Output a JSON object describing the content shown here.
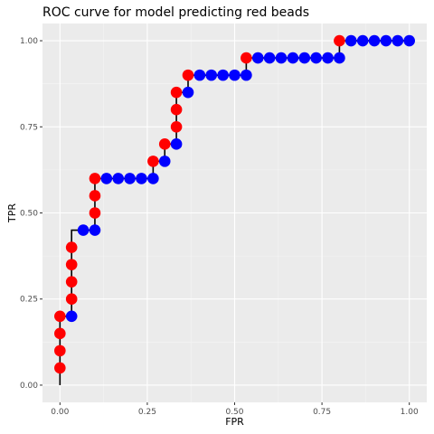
{
  "chart_data": {
    "type": "line",
    "title": "ROC curve for model predicting red beads",
    "xlabel": "FPR",
    "ylabel": "TPR",
    "xlim": [
      -0.05,
      1.05
    ],
    "ylim": [
      -0.05,
      1.05
    ],
    "x_ticks": [
      0,
      0.25,
      0.5,
      0.75,
      1.0
    ],
    "x_tick_labels": [
      "0.00",
      "0.25",
      "0.50",
      "0.75",
      "1.00"
    ],
    "y_ticks": [
      0,
      0.25,
      0.5,
      0.75,
      1.0
    ],
    "y_tick_labels": [
      "0.00",
      "0.25",
      "0.50",
      "0.75",
      "1.00"
    ],
    "grid": true,
    "series": [
      {
        "line_color": "#000000",
        "x": [
          0.0,
          0.0,
          0.0,
          0.0,
          0.0,
          0.0333,
          0.0333,
          0.0333,
          0.0333,
          0.0333,
          0.0333,
          0.0667,
          0.1,
          0.1,
          0.1,
          0.1,
          0.1,
          0.1333,
          0.1667,
          0.2,
          0.2333,
          0.2667,
          0.2667,
          0.3,
          0.3,
          0.3333,
          0.3333,
          0.3333,
          0.3333,
          0.3667,
          0.3667,
          0.4,
          0.4333,
          0.4667,
          0.5,
          0.5333,
          0.5333,
          0.5667,
          0.6,
          0.6333,
          0.6667,
          0.7,
          0.7333,
          0.7667,
          0.8,
          0.8,
          0.8333,
          0.8667,
          0.9,
          0.9333,
          0.9667,
          1.0
        ],
        "y": [
          0.0,
          0.05,
          0.1,
          0.15,
          0.2,
          0.2,
          0.25,
          0.3,
          0.35,
          0.4,
          0.45,
          0.45,
          0.45,
          0.5,
          0.55,
          0.6,
          0.6,
          0.6,
          0.6,
          0.6,
          0.6,
          0.6,
          0.65,
          0.65,
          0.7,
          0.7,
          0.75,
          0.8,
          0.85,
          0.85,
          0.9,
          0.9,
          0.9,
          0.9,
          0.9,
          0.9,
          0.95,
          0.95,
          0.95,
          0.95,
          0.95,
          0.95,
          0.95,
          0.95,
          0.95,
          1.0,
          1.0,
          1.0,
          1.0,
          1.0,
          1.0,
          1.0
        ]
      }
    ],
    "points": {
      "x": [
        0.0,
        0.0,
        0.0,
        0.0,
        0.0333,
        0.0333,
        0.0333,
        0.0333,
        0.0333,
        0.0667,
        0.1,
        0.1,
        0.1,
        0.1,
        0.1333,
        0.1667,
        0.2,
        0.2333,
        0.2667,
        0.2667,
        0.3,
        0.3,
        0.3333,
        0.3333,
        0.3333,
        0.3333,
        0.3667,
        0.3667,
        0.4,
        0.4333,
        0.4667,
        0.5,
        0.5333,
        0.5333,
        0.5667,
        0.6,
        0.6333,
        0.6667,
        0.7,
        0.7333,
        0.7667,
        0.8,
        0.8,
        0.8333,
        0.8667,
        0.9,
        0.9333,
        0.9667,
        1.0
      ],
      "y": [
        0.05,
        0.1,
        0.15,
        0.2,
        0.2,
        0.25,
        0.3,
        0.35,
        0.4,
        0.45,
        0.45,
        0.5,
        0.55,
        0.6,
        0.6,
        0.6,
        0.6,
        0.6,
        0.6,
        0.65,
        0.65,
        0.7,
        0.7,
        0.75,
        0.8,
        0.85,
        0.85,
        0.9,
        0.9,
        0.9,
        0.9,
        0.9,
        0.9,
        0.95,
        0.95,
        0.95,
        0.95,
        0.95,
        0.95,
        0.95,
        0.95,
        0.95,
        1.0,
        1.0,
        1.0,
        1.0,
        1.0,
        1.0,
        1.0
      ],
      "color": [
        "red",
        "red",
        "red",
        "red",
        "blue",
        "red",
        "red",
        "red",
        "red",
        "blue",
        "blue",
        "red",
        "red",
        "red",
        "blue",
        "blue",
        "blue",
        "blue",
        "blue",
        "red",
        "blue",
        "red",
        "blue",
        "red",
        "red",
        "red",
        "blue",
        "red",
        "blue",
        "blue",
        "blue",
        "blue",
        "blue",
        "red",
        "blue",
        "blue",
        "blue",
        "blue",
        "blue",
        "blue",
        "blue",
        "blue",
        "red",
        "blue",
        "blue",
        "blue",
        "blue",
        "blue",
        "blue"
      ]
    },
    "colors": {
      "red": "#ff0000",
      "blue": "#0000ff"
    }
  }
}
